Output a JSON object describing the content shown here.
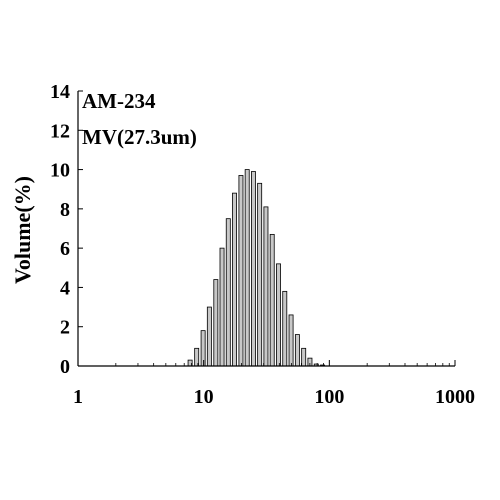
{
  "chart_data": {
    "type": "bar",
    "xlabel": "",
    "ylabel": "Volume(%)",
    "xscale": "log",
    "xlim": [
      1,
      1000
    ],
    "ylim": [
      0,
      14
    ],
    "x_ticks": [
      1,
      10,
      100,
      1000
    ],
    "x_tick_labels": [
      "1",
      "10",
      "100",
      "1000"
    ],
    "y_ticks": [
      0,
      2,
      4,
      6,
      8,
      10,
      12,
      14
    ],
    "y_tick_labels": [
      "0",
      "2",
      "4",
      "6",
      "8",
      "10",
      "12",
      "14"
    ],
    "grid": false,
    "annotations": [
      "AM-234",
      "MV(27.3um)"
    ],
    "bar_color": "#c8c8c8",
    "bar_edge_color": "#000000",
    "series": [
      {
        "x": [
          7.8,
          8.8,
          9.9,
          11.1,
          12.5,
          14.0,
          15.7,
          17.6,
          19.8,
          22.2,
          24.9,
          27.9,
          31.3,
          35.1,
          39.4,
          44.2,
          49.6,
          55.7,
          62.5,
          70.1,
          78.7,
          88.3
        ],
        "values": [
          0.3,
          0.9,
          1.8,
          3.0,
          4.4,
          6.0,
          7.5,
          8.8,
          9.7,
          10.0,
          9.9,
          9.3,
          8.1,
          6.7,
          5.2,
          3.8,
          2.6,
          1.6,
          0.9,
          0.4,
          0.1,
          0.05
        ]
      }
    ]
  }
}
